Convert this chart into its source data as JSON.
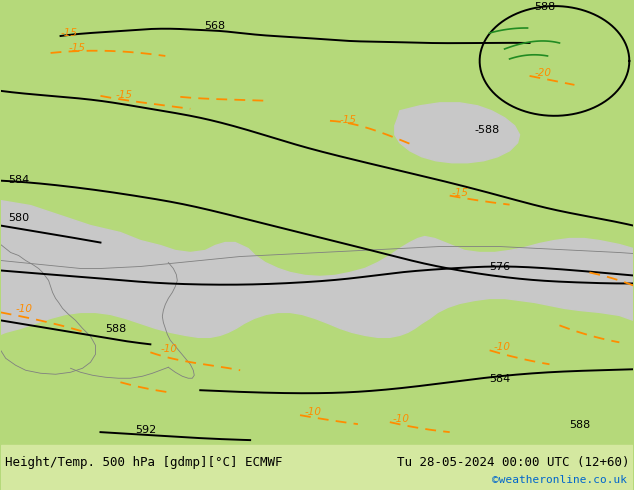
{
  "title_left": "Height/Temp. 500 hPa [gdmp][°C] ECMWF",
  "title_right": "Tu 28-05-2024 00:00 UTC (12+60)",
  "watermark": "©weatheronline.co.uk",
  "watermark_color": "#0066cc",
  "bg_land_green": "#b5d97a",
  "bg_sea_gray": "#c8c8c8",
  "bg_outer": "#b5d97a",
  "coast_color": "#808080",
  "z500_color": "#000000",
  "temp_color": "#ff8c00",
  "z850_color": "#228B22",
  "title_fontsize": 9,
  "label_fontsize": 8,
  "bottom_bar_color": "#d4e8a0"
}
